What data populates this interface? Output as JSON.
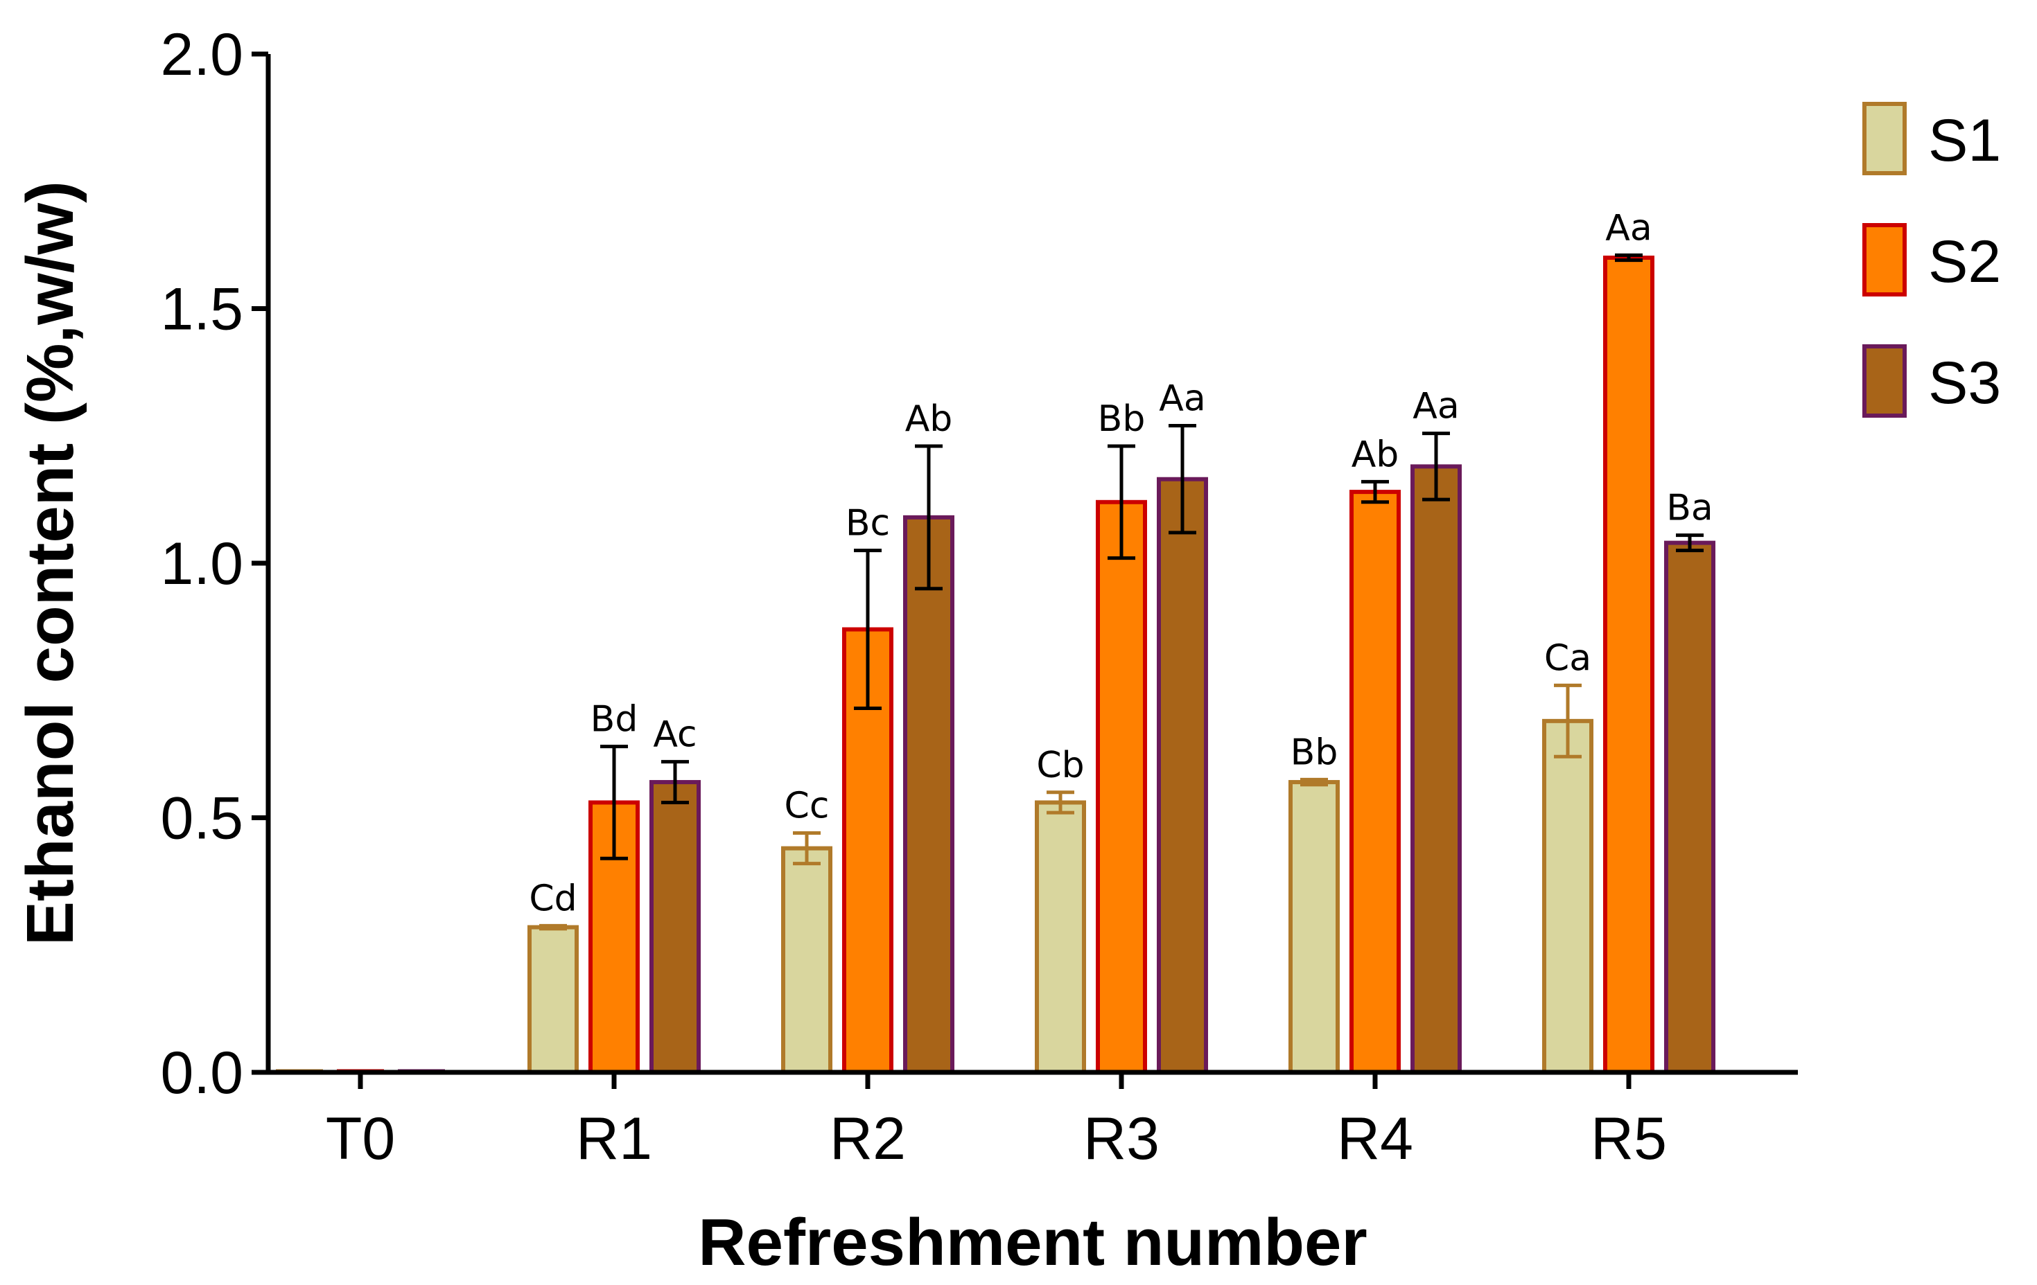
{
  "chart_data": {
    "type": "bar",
    "title": "",
    "xlabel": "Refreshment number",
    "ylabel": "Ethanol content (%,w/w)",
    "ylim": [
      0,
      2.0
    ],
    "yticks": [
      "0.0",
      "0.5",
      "1.0",
      "1.5",
      "2.0"
    ],
    "ytick_values": [
      0,
      0.5,
      1.0,
      1.5,
      2.0
    ],
    "grid": false,
    "legend_position": "right",
    "categories": [
      "T0",
      "R1",
      "R2",
      "R3",
      "R4",
      "R5"
    ],
    "series": [
      {
        "name": "S1",
        "fill": "#d9d69e",
        "stroke": "#b07a2a",
        "err_color": "#b07a2a",
        "values": [
          0.0,
          0.285,
          0.44,
          0.53,
          0.57,
          0.69
        ],
        "errors": [
          0.0,
          0.003,
          0.03,
          0.02,
          0.005,
          0.07
        ],
        "labels": [
          "",
          "Cd",
          "Cc",
          "Cb",
          "Bb",
          "Ca"
        ]
      },
      {
        "name": "S2",
        "fill": "#ff8000",
        "stroke": "#cc0000",
        "err_color": "#000000",
        "values": [
          0.0,
          0.53,
          0.87,
          1.12,
          1.14,
          1.6
        ],
        "errors": [
          0.0,
          0.11,
          0.155,
          0.11,
          0.02,
          0.005
        ],
        "labels": [
          "",
          "Bd",
          "Bc",
          "Bb",
          "Ab",
          "Aa"
        ]
      },
      {
        "name": "S3",
        "fill": "#a86418",
        "stroke": "#6a1a5a",
        "err_color": "#000000",
        "values": [
          0.0,
          0.57,
          1.09,
          1.165,
          1.19,
          1.04
        ],
        "errors": [
          0.0,
          0.04,
          0.14,
          0.105,
          0.065,
          0.015
        ],
        "labels": [
          "",
          "Ac",
          "Ab",
          "Aa",
          "Aa",
          "Ba"
        ]
      }
    ]
  }
}
